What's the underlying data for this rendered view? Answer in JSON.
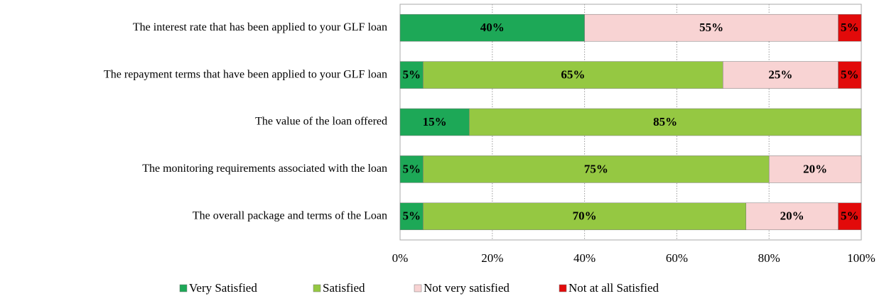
{
  "chart_data": {
    "type": "stacked_bar_horizontal",
    "categories": [
      "The interest rate that has been applied to your GLF loan",
      "The repayment terms that have been applied to your GLF loan",
      "The value of the loan offered",
      "The monitoring requirements associated with the loan",
      "The overall package and terms of the Loan"
    ],
    "series": [
      {
        "name": "Very Satisfied",
        "color": "#1da857",
        "values": [
          40,
          5,
          15,
          5,
          5
        ],
        "value_labels": [
          "40%",
          "5%",
          "15%",
          "5%",
          "5%"
        ]
      },
      {
        "name": "Satisfied",
        "color": "#95c842",
        "values": [
          0,
          65,
          85,
          75,
          70
        ],
        "value_labels": [
          null,
          "65%",
          "85%",
          "75%",
          "70%"
        ]
      },
      {
        "name": "Not very satisfied",
        "color": "#f8d3d3",
        "values": [
          55,
          25,
          0,
          20,
          20
        ],
        "value_labels": [
          "55%",
          "25%",
          null,
          "20%",
          "20%"
        ]
      },
      {
        "name": "Not at all Satisfied",
        "color": "#e20a0a",
        "values": [
          5,
          5,
          0,
          0,
          5
        ],
        "value_labels": [
          "5%",
          "5%",
          null,
          null,
          "5%"
        ]
      }
    ],
    "xlim": [
      0,
      100
    ],
    "xticks": [
      {
        "value": 0,
        "label": "0%"
      },
      {
        "value": 20,
        "label": "20%"
      },
      {
        "value": 40,
        "label": "40%"
      },
      {
        "value": 60,
        "label": "60%"
      },
      {
        "value": 80,
        "label": "80%"
      },
      {
        "value": 100,
        "label": "100%"
      }
    ],
    "grid": true,
    "legend": "bottom"
  }
}
